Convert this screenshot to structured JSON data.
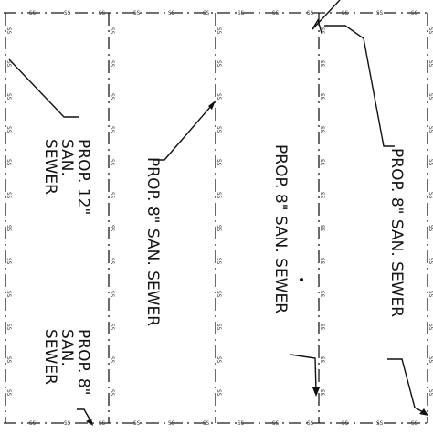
{
  "line_marker": "SS",
  "labels": {
    "col1_top": "PROP. 12\"\nSAN.\nSEWER",
    "col1_bottom": "PROP. 8\"\nSAN.\nSEWER",
    "col2": "PROP. 8\" SAN. SEWER",
    "col3": "PROP. 8\" SAN. SEWER",
    "col4": "PROP. 8\" SAN. SEWER"
  }
}
